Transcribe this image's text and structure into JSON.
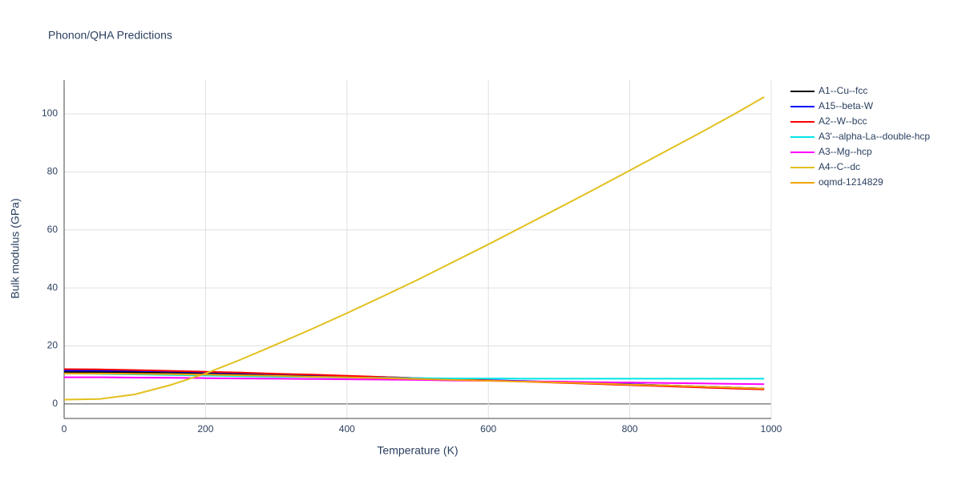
{
  "chart_data": {
    "type": "line",
    "title": "Phonon/QHA Predictions",
    "x_label": "Temperature (K)",
    "y_label": "Bulk modulus (GPa)",
    "x": [
      0,
      50,
      100,
      150,
      200,
      250,
      300,
      350,
      400,
      450,
      500,
      550,
      600,
      650,
      700,
      750,
      800,
      850,
      900,
      950,
      990
    ],
    "xlim": [
      0,
      1000
    ],
    "ylim": [
      -5,
      111.6
    ],
    "xticks": [
      0,
      200,
      400,
      600,
      800,
      1000
    ],
    "yticks": [
      0,
      20,
      40,
      60,
      80,
      100
    ],
    "grid": true,
    "legend": "right",
    "series": [
      {
        "name": "A1--Cu--fcc",
        "color": "#000000",
        "values": [
          11.0,
          11.0,
          10.9,
          10.7,
          10.5,
          10.2,
          9.9,
          9.6,
          9.3,
          9.0,
          8.7,
          8.4,
          8.1,
          7.8,
          7.5,
          7.1,
          6.8,
          6.4,
          6.0,
          5.6,
          5.3
        ]
      },
      {
        "name": "A15--beta-W",
        "color": "#0000ff",
        "values": [
          11.5,
          11.5,
          11.4,
          11.2,
          10.9,
          10.6,
          10.3,
          10.0,
          9.6,
          9.3,
          8.9,
          8.6,
          8.2,
          7.9,
          7.5,
          7.1,
          6.8,
          6.4,
          6.0,
          5.6,
          5.3
        ]
      },
      {
        "name": "A2--W--bcc",
        "color": "#ff0000",
        "values": [
          12.0,
          11.9,
          11.7,
          11.4,
          11.1,
          10.8,
          10.4,
          10.1,
          9.7,
          9.3,
          8.9,
          8.5,
          8.1,
          7.7,
          7.3,
          6.9,
          6.5,
          6.1,
          5.7,
          5.3,
          5.0
        ]
      },
      {
        "name": "A3'--alpha-La--double-hcp",
        "color": "#00e5e5",
        "values": [
          10.5,
          10.4,
          10.2,
          10.0,
          9.8,
          9.6,
          9.4,
          9.3,
          9.1,
          9.0,
          8.9,
          8.8,
          8.8,
          8.7,
          8.7,
          8.7,
          8.7,
          8.7,
          8.7,
          8.7,
          8.7
        ]
      },
      {
        "name": "A3--Mg--hcp",
        "color": "#ff00ff",
        "values": [
          9.2,
          9.2,
          9.1,
          9.0,
          8.9,
          8.8,
          8.7,
          8.6,
          8.5,
          8.4,
          8.3,
          8.1,
          8.0,
          7.8,
          7.7,
          7.5,
          7.4,
          7.2,
          7.1,
          6.9,
          6.8
        ]
      },
      {
        "name": "A4--C--dc",
        "color": "#e2c01e",
        "values": [
          1.5,
          1.7,
          3.3,
          6.5,
          10.5,
          15.3,
          20.5,
          25.8,
          31.3,
          37.0,
          42.8,
          48.9,
          55.0,
          61.3,
          67.6,
          74.0,
          80.5,
          87.0,
          93.5,
          100.2,
          105.8
        ]
      },
      {
        "name": "oqmd-1214829",
        "color": "#f0a30a",
        "values": [
          10.5,
          10.5,
          10.4,
          10.3,
          10.1,
          9.9,
          9.7,
          9.4,
          9.2,
          8.9,
          8.6,
          8.3,
          8.0,
          7.7,
          7.4,
          7.1,
          6.7,
          6.4,
          6.0,
          5.6,
          5.3
        ]
      }
    ]
  }
}
